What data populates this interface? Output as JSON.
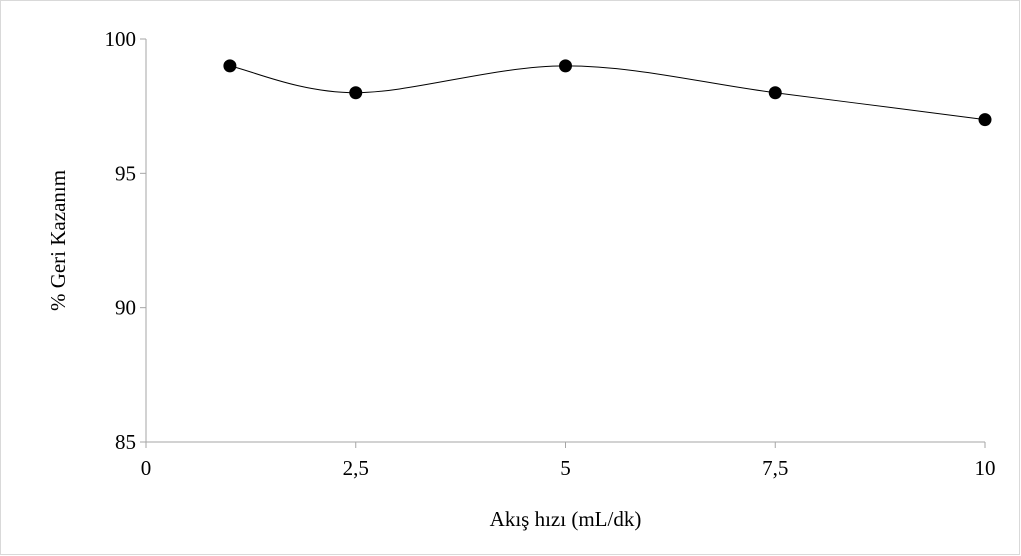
{
  "chart_data": {
    "type": "line",
    "title": "",
    "xlabel": "Akış hızı (mL/dk)",
    "ylabel": "% Geri Kazanım",
    "x_ticks": [
      0,
      2.5,
      5,
      7.5,
      10
    ],
    "x_tick_labels": [
      "0",
      "2,5",
      "5",
      "7,5",
      "10"
    ],
    "y_ticks": [
      85,
      90,
      95,
      100
    ],
    "y_tick_labels": [
      "85",
      "90",
      "95",
      "100"
    ],
    "xlim": [
      0,
      10
    ],
    "ylim": [
      85,
      100
    ],
    "grid": false,
    "legend": "none",
    "smoothed": true,
    "series": [
      {
        "x": [
          1,
          2.5,
          5,
          7.5,
          10
        ],
        "values": [
          99,
          98,
          99,
          98,
          97
        ],
        "color": "#000000",
        "marker": "circle"
      }
    ]
  }
}
